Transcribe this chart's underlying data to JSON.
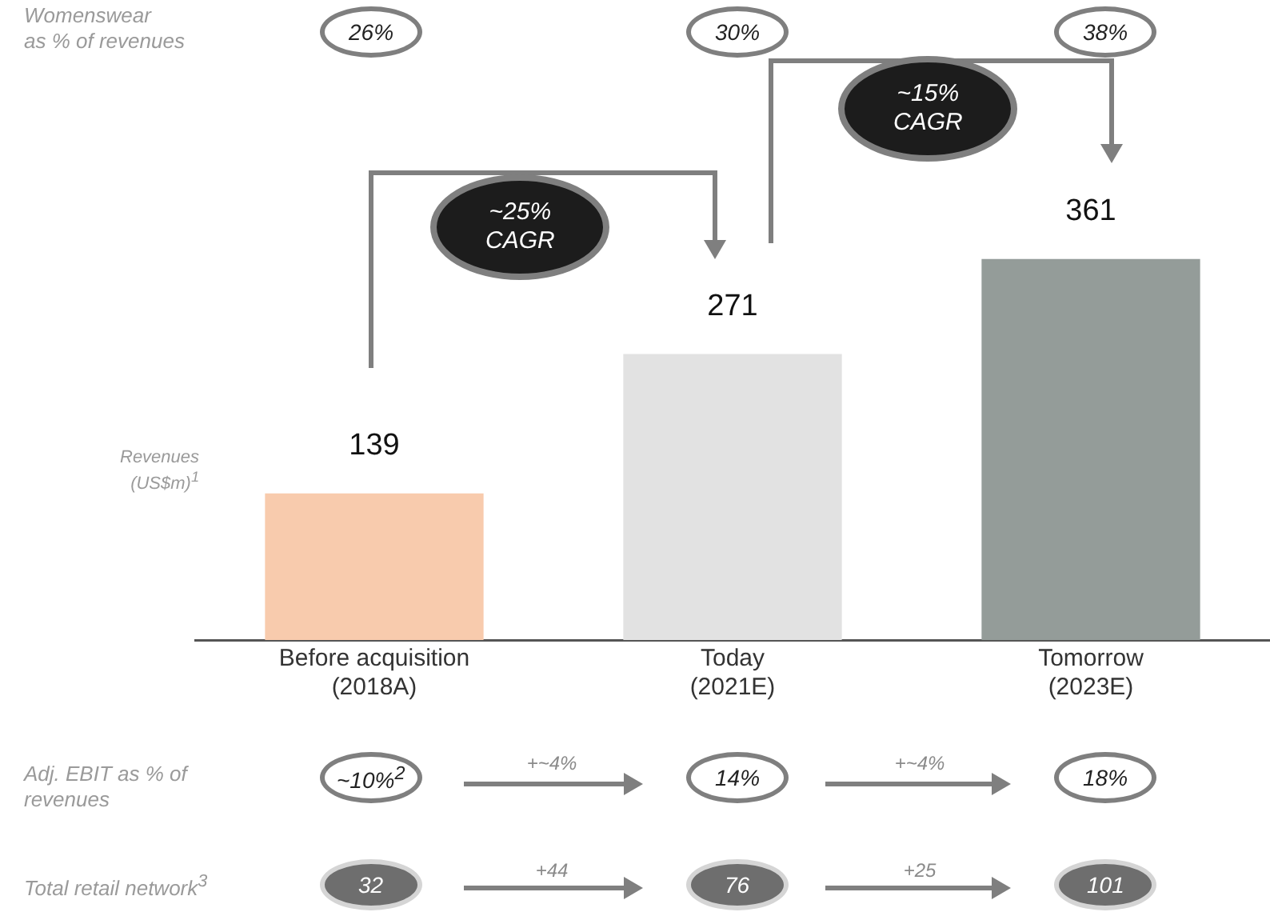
{
  "chart_data": {
    "type": "bar",
    "categories": [
      "Before acquisition\n(2018A)",
      "Today\n(2021E)",
      "Tomorrow\n(2023E)"
    ],
    "values": [
      139,
      271,
      361
    ],
    "colors": [
      "#f8cbad",
      "#e2e2e2",
      "#949c99"
    ],
    "data_labels": true,
    "grid": false,
    "legend": false,
    "annotations": [
      "Womenswear\nas % of revenues",
      "26%",
      "30%",
      "38%",
      "~25%\nCAGR",
      "~15%\nCAGR",
      "Revenues\n(US$m)$^{1}$",
      "Adj. EBIT as % of\nrevenues",
      "~10%$^{2}$",
      "+~4%",
      "14%",
      "+~4%",
      "18%",
      "Total retail network$^{3}$",
      "32",
      "+44",
      "76",
      "+25",
      "101"
    ]
  }
}
